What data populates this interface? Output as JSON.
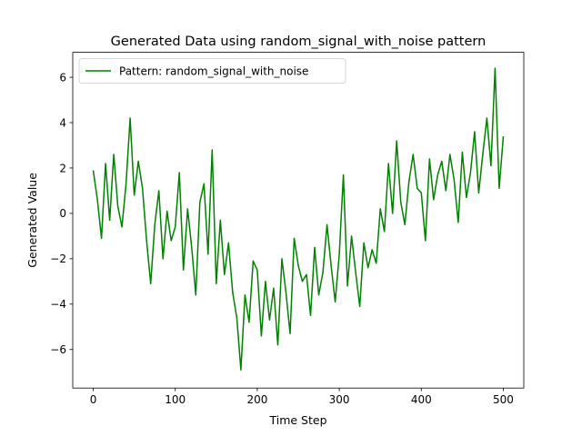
{
  "chart_data": {
    "type": "line",
    "title": "Generated Data using random_signal_with_noise pattern",
    "xlabel": "Time Step",
    "ylabel": "Generated Value",
    "xlim": [
      -25,
      525
    ],
    "ylim": [
      -7.7,
      7.1
    ],
    "xticks": [
      0,
      100,
      200,
      300,
      400,
      500
    ],
    "yticks": [
      -6,
      -4,
      -2,
      0,
      2,
      4,
      6
    ],
    "grid": false,
    "legend_position": "top-left",
    "series": [
      {
        "name": "Pattern: random_signal_with_noise",
        "color": "#008000",
        "x": [
          0,
          5,
          10,
          15,
          20,
          25,
          30,
          35,
          40,
          45,
          50,
          55,
          60,
          65,
          70,
          75,
          80,
          85,
          90,
          95,
          100,
          105,
          110,
          115,
          120,
          125,
          130,
          135,
          140,
          145,
          150,
          155,
          160,
          165,
          170,
          175,
          180,
          185,
          190,
          195,
          200,
          205,
          210,
          215,
          220,
          225,
          230,
          235,
          240,
          245,
          250,
          255,
          260,
          265,
          270,
          275,
          280,
          285,
          290,
          295,
          300,
          305,
          310,
          315,
          320,
          325,
          330,
          335,
          340,
          345,
          350,
          355,
          360,
          365,
          370,
          375,
          380,
          385,
          390,
          395,
          400,
          405,
          410,
          415,
          420,
          425,
          430,
          435,
          440,
          445,
          450,
          455,
          460,
          465,
          470,
          475,
          480,
          485,
          490,
          495,
          500
        ],
        "y": [
          1.9,
          0.6,
          -1.1,
          2.2,
          -0.3,
          2.6,
          0.3,
          -0.6,
          1.3,
          4.2,
          0.8,
          2.3,
          1.1,
          -1.2,
          -3.1,
          -0.5,
          1.0,
          -2.0,
          0.1,
          -1.2,
          -0.6,
          1.8,
          -2.5,
          0.2,
          -1.5,
          -3.6,
          0.5,
          1.3,
          -1.8,
          2.8,
          -3.1,
          -0.3,
          -2.7,
          -1.3,
          -3.5,
          -4.6,
          -6.9,
          -3.6,
          -4.8,
          -2.1,
          -2.5,
          -5.4,
          -3.0,
          -4.7,
          -3.3,
          -5.8,
          -2.0,
          -3.5,
          -5.3,
          -1.1,
          -2.3,
          -3.0,
          -2.7,
          -4.5,
          -1.5,
          -3.6,
          -2.6,
          -0.5,
          -2.3,
          -3.9,
          -1.8,
          1.7,
          -3.2,
          -1.0,
          -2.6,
          -4.1,
          -1.3,
          -2.4,
          -1.6,
          -2.2,
          0.2,
          -0.8,
          2.2,
          0.0,
          3.2,
          0.5,
          -0.5,
          1.4,
          2.6,
          1.1,
          0.9,
          -1.2,
          2.4,
          0.6,
          1.7,
          2.3,
          1.0,
          2.6,
          1.5,
          -0.4,
          2.7,
          0.7,
          1.8,
          3.6,
          0.9,
          2.6,
          4.2,
          2.1,
          6.4,
          1.1,
          3.4
        ]
      }
    ]
  }
}
